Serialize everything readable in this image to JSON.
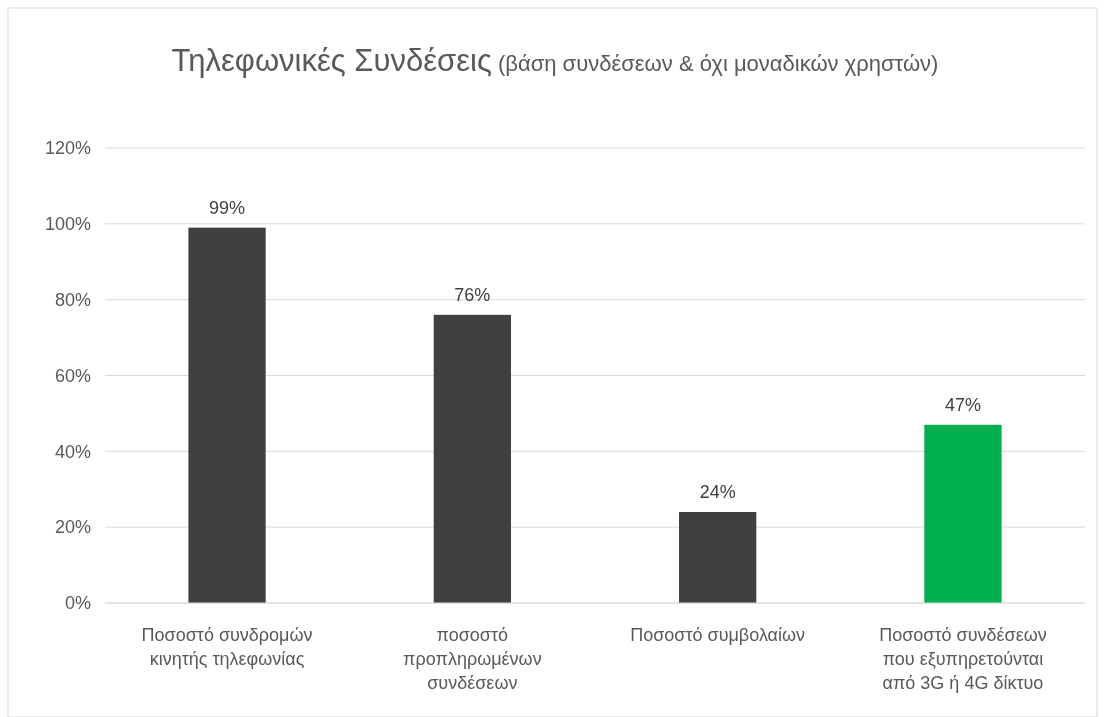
{
  "chart_data": {
    "type": "bar",
    "title": "Τηλεφωνικές Συνδέσεις",
    "subtitle": "(βάση συνδέσεων & όχι μοναδικών χρηστών)",
    "categories": [
      "Ποσοστό συνδρομών κινητής τηλεφωνίας",
      "ποσοστό προπληρωμένων συνδέσεων",
      "Ποσοστό συμβολαίων",
      "Ποσοστό συνδέσεων που εξυπηρετούνται από 3G ή 4G δίκτυο"
    ],
    "values": [
      99,
      76,
      24,
      47
    ],
    "colors": [
      "#404040",
      "#404040",
      "#404040",
      "#00b050"
    ],
    "value_labels": [
      "99%",
      "76%",
      "24%",
      "47%"
    ],
    "ylim": [
      0,
      120
    ],
    "yticks": [
      {
        "value": 0,
        "label": "0%"
      },
      {
        "value": 20,
        "label": "20%"
      },
      {
        "value": 40,
        "label": "40%"
      },
      {
        "value": 60,
        "label": "60%"
      },
      {
        "value": 80,
        "label": "80%"
      },
      {
        "value": 100,
        "label": "100%"
      },
      {
        "value": 120,
        "label": "120%"
      }
    ],
    "grid": "y"
  }
}
